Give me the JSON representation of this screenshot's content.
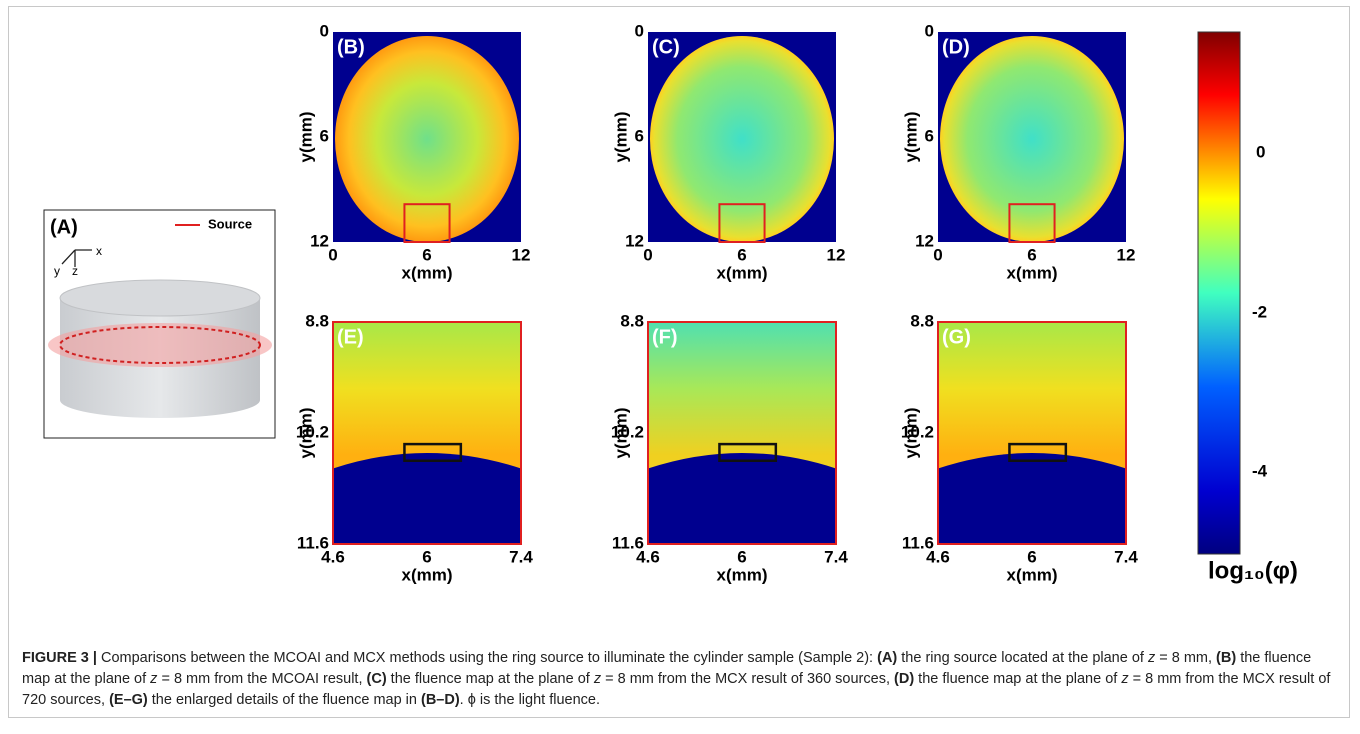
{
  "panel_a": {
    "label": "(A)",
    "legend": "Source",
    "axis_x": "x",
    "axis_y": "y",
    "axis_z": "z"
  },
  "panels": [
    {
      "label": "(B)",
      "xticks": [
        "0",
        "6",
        "12"
      ],
      "yticks": [
        "0",
        "6",
        "12"
      ],
      "xlabel": "x(mm)",
      "ylabel": "y(mm)"
    },
    {
      "label": "(C)",
      "xticks": [
        "0",
        "6",
        "12"
      ],
      "yticks": [
        "0",
        "6",
        "12"
      ],
      "xlabel": "x(mm)",
      "ylabel": "y(mm)"
    },
    {
      "label": "(D)",
      "xticks": [
        "0",
        "6",
        "12"
      ],
      "yticks": [
        "0",
        "6",
        "12"
      ],
      "xlabel": "x(mm)",
      "ylabel": "y(mm)"
    },
    {
      "label": "(E)",
      "xticks": [
        "4.6",
        "6",
        "7.4"
      ],
      "yticks": [
        "8.8",
        "10.2",
        "11.6"
      ],
      "xlabel": "x(mm)",
      "ylabel": "y(mm)"
    },
    {
      "label": "(F)",
      "xticks": [
        "4.6",
        "6",
        "7.4"
      ],
      "yticks": [
        "8.8",
        "10.2",
        "11.6"
      ],
      "xlabel": "x(mm)",
      "ylabel": "y(mm)"
    },
    {
      "label": "(G)",
      "xticks": [
        "4.6",
        "6",
        "7.4"
      ],
      "yticks": [
        "8.8",
        "10.2",
        "11.6"
      ],
      "xlabel": "x(mm)",
      "ylabel": "y(mm)"
    }
  ],
  "colorbar": {
    "ticks": [
      "0",
      "-2",
      "-4"
    ],
    "label": "log₁₀(φ)"
  },
  "caption": [
    {
      "text": "FIGURE 3 |",
      "style": "bold"
    },
    {
      "text": " Comparisons between the MCOAI and MCX methods using the ring source to illuminate the cylinder sample (Sample 2): ",
      "style": "normal"
    },
    {
      "text": "(A)",
      "style": "bold"
    },
    {
      "text": " the ring source located at the plane of ",
      "style": "normal"
    },
    {
      "text": "z",
      "style": "italic"
    },
    {
      "text": " = 8 mm, ",
      "style": "normal"
    },
    {
      "text": "(B)",
      "style": "bold"
    },
    {
      "text": " the fluence map at the plane of ",
      "style": "normal"
    },
    {
      "text": "z",
      "style": "italic"
    },
    {
      "text": " = 8 mm from the MCOAI result, ",
      "style": "normal"
    },
    {
      "text": "(C)",
      "style": "bold"
    },
    {
      "text": " the fluence map at the plane of ",
      "style": "normal"
    },
    {
      "text": "z",
      "style": "italic"
    },
    {
      "text": " = 8 mm from the MCX result of 360 sources, ",
      "style": "normal"
    },
    {
      "text": "(D)",
      "style": "bold"
    },
    {
      "text": " the fluence map at the plane of ",
      "style": "normal"
    },
    {
      "text": "z",
      "style": "italic"
    },
    {
      "text": " = 8 mm from the MCX result of 720 sources, ",
      "style": "normal"
    },
    {
      "text": "(E–G)",
      "style": "bold"
    },
    {
      "text": " the enlarged details of the fluence map in ",
      "style": "normal"
    },
    {
      "text": "(B–D)",
      "style": "bold"
    },
    {
      "text": ". ϕ is the light fluence.",
      "style": "normal"
    }
  ]
}
